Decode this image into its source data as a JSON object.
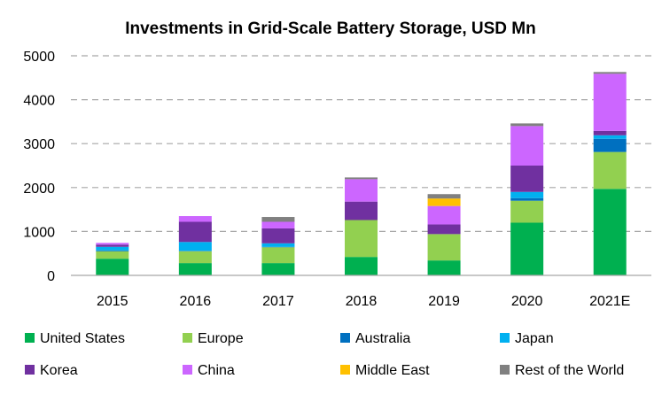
{
  "chart_data": {
    "type": "bar",
    "stacked": true,
    "title": "Investments in Grid-Scale Battery Storage, USD Mn",
    "xlabel": "",
    "ylabel": "",
    "ylim": [
      0,
      5000
    ],
    "yticks": [
      "0",
      "1000",
      "2000",
      "3000",
      "4000",
      "5000"
    ],
    "grid": true,
    "legend_position": "bottom",
    "categories": [
      "2015",
      "2016",
      "2017",
      "2018",
      "2019",
      "2020",
      "2021E"
    ],
    "series": [
      {
        "name": "United States",
        "color": "#00b050",
        "values": [
          380,
          280,
          280,
          420,
          340,
          1200,
          1970
        ]
      },
      {
        "name": "Europe",
        "color": "#92d050",
        "values": [
          170,
          270,
          360,
          840,
          600,
          500,
          840
        ]
      },
      {
        "name": "Australia",
        "color": "#0070c0",
        "values": [
          20,
          10,
          10,
          0,
          0,
          60,
          300
        ]
      },
      {
        "name": "Japan",
        "color": "#00b0f0",
        "values": [
          80,
          200,
          80,
          0,
          0,
          140,
          80
        ]
      },
      {
        "name": "Korea",
        "color": "#7030a0",
        "values": [
          50,
          460,
          340,
          420,
          220,
          600,
          100
        ]
      },
      {
        "name": "China",
        "color": "#cc66ff",
        "values": [
          40,
          130,
          150,
          510,
          420,
          900,
          1300
        ]
      },
      {
        "name": "Middle East",
        "color": "#ffc000",
        "values": [
          0,
          0,
          0,
          0,
          170,
          0,
          0
        ]
      },
      {
        "name": "Rest of the World",
        "color": "#808080",
        "values": [
          0,
          0,
          110,
          40,
          100,
          60,
          40
        ]
      }
    ]
  }
}
